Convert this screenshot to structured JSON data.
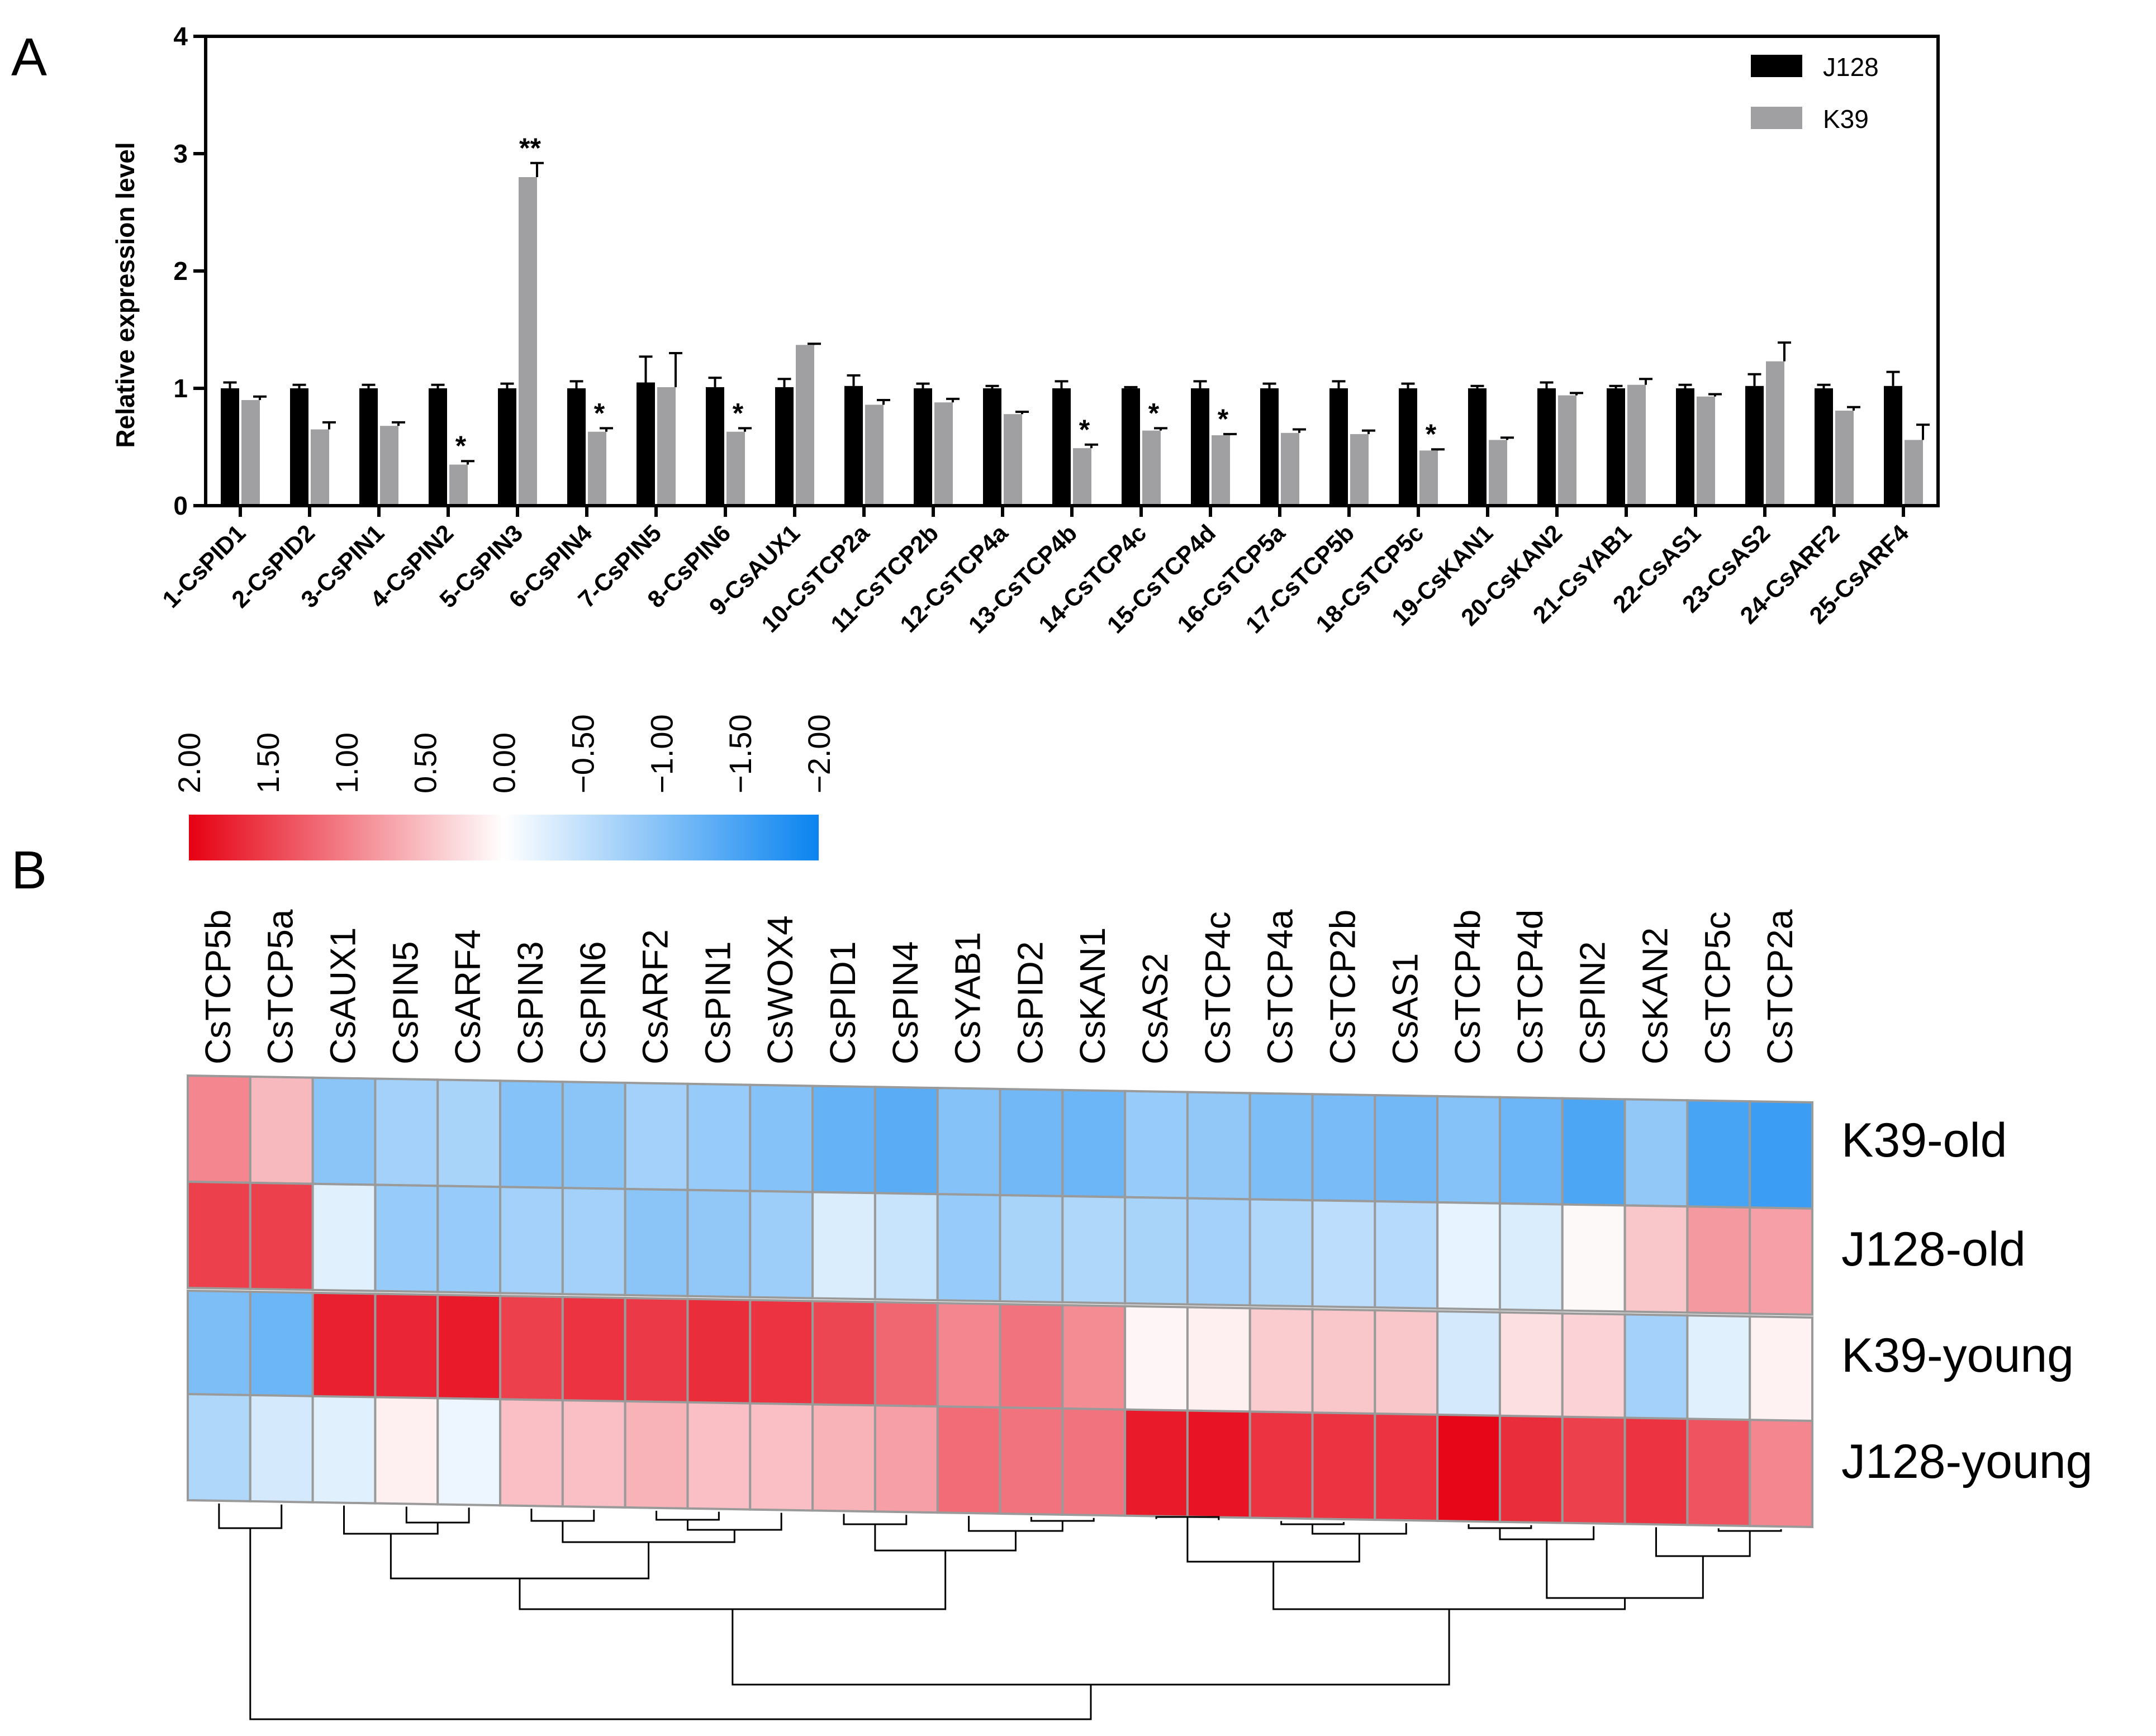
{
  "chart_data": [
    {
      "type": "bar",
      "panel_label": "A",
      "ylabel": "Relative expression level",
      "xlabel": "",
      "ylim": [
        0,
        4
      ],
      "yticks": [
        "0",
        "1",
        "2",
        "3",
        "4"
      ],
      "categories": [
        "1-CsPID1",
        "2-CsPID2",
        "3-CsPIN1",
        "4-CsPIN2",
        "5-CsPIN3",
        "6-CsPIN4",
        "7-CsPIN5",
        "8-CsPIN6",
        "9-CsAUX1",
        "10-CsTCP2a",
        "11-CsTCP2b",
        "12-CsTCP4a",
        "13-CsTCP4b",
        "14-CsTCP4c",
        "15-CsTCP4d",
        "16-CsTCP5a",
        "17-CsTCP5b",
        "18-CsTCP5c",
        "19-CsKAN1",
        "20-CsKAN2",
        "21-CsYAB1",
        "22-CsAS1",
        "23-CsAS2",
        "24-CsARF2",
        "25-CsARF4"
      ],
      "series": [
        {
          "name": "J128",
          "color": "#000000",
          "values": [
            1.0,
            1.0,
            1.0,
            1.0,
            1.0,
            1.0,
            1.05,
            1.01,
            1.01,
            1.02,
            1.0,
            1.0,
            1.0,
            1.0,
            1.0,
            1.0,
            1.0,
            1.0,
            1.0,
            1.0,
            1.0,
            1.0,
            1.02,
            1.0,
            1.02
          ],
          "errors": [
            0.05,
            0.03,
            0.03,
            0.03,
            0.04,
            0.06,
            0.22,
            0.08,
            0.07,
            0.09,
            0.04,
            0.02,
            0.06,
            0.01,
            0.06,
            0.04,
            0.06,
            0.04,
            0.02,
            0.05,
            0.02,
            0.03,
            0.1,
            0.03,
            0.12
          ]
        },
        {
          "name": "K39",
          "color": "#a0a0a2",
          "values": [
            0.9,
            0.65,
            0.68,
            0.35,
            2.8,
            0.63,
            1.01,
            0.63,
            1.37,
            0.86,
            0.88,
            0.78,
            0.49,
            0.64,
            0.6,
            0.62,
            0.61,
            0.47,
            0.56,
            0.94,
            1.03,
            0.93,
            1.23,
            0.81,
            0.56
          ],
          "errors": [
            0.03,
            0.06,
            0.03,
            0.03,
            0.12,
            0.03,
            0.29,
            0.03,
            0.01,
            0.04,
            0.03,
            0.02,
            0.03,
            0.02,
            0.01,
            0.03,
            0.03,
            0.01,
            0.02,
            0.02,
            0.05,
            0.02,
            0.16,
            0.03,
            0.13
          ]
        }
      ],
      "significance": [
        "",
        "",
        "",
        "*",
        "**",
        "*",
        "",
        "*",
        "",
        "",
        "",
        "",
        "*",
        "*",
        "*",
        "",
        "",
        "*",
        "",
        "",
        "",
        "",
        "",
        "",
        ""
      ],
      "legend_position": "top-right"
    },
    {
      "type": "heatmap",
      "panel_label": "B",
      "columns": [
        "CsTCP5b",
        "CsTCP5a",
        "CsAUX1",
        "CsPIN5",
        "CsARF4",
        "CsPIN3",
        "CsPIN6",
        "CsARF2",
        "CsPIN1",
        "CsWOX4",
        "CsPID1",
        "CsPIN4",
        "CsYAB1",
        "CsPID2",
        "CsKAN1",
        "CsAS2",
        "CsTCP4c",
        "CsTCP4a",
        "CsTCP2b",
        "CsAS1",
        "CsTCP4b",
        "CsTCP4d",
        "CsPIN2",
        "CsKAN2",
        "CsTCP5c",
        "CsTCP2a"
      ],
      "rows": [
        "K39-old",
        "J128-old",
        "K39-young",
        "J128-young"
      ],
      "values": [
        [
          0.95,
          0.55,
          -0.95,
          -0.75,
          -0.7,
          -1.0,
          -0.95,
          -0.75,
          -0.85,
          -1.0,
          -1.25,
          -1.35,
          -1.0,
          -1.15,
          -1.2,
          -0.85,
          -0.9,
          -1.05,
          -1.1,
          -1.15,
          -1.0,
          -1.2,
          -1.45,
          -0.9,
          -1.5,
          -1.6
        ],
        [
          1.5,
          1.5,
          -0.25,
          -0.85,
          -0.85,
          -0.75,
          -0.75,
          -0.95,
          -0.9,
          -0.8,
          -0.3,
          -0.45,
          -0.85,
          -0.7,
          -0.65,
          -0.7,
          -0.75,
          -0.65,
          -0.55,
          -0.6,
          -0.2,
          -0.3,
          0.05,
          0.45,
          0.8,
          0.75
        ],
        [
          -1.05,
          -1.2,
          1.75,
          1.7,
          1.8,
          1.5,
          1.6,
          1.55,
          1.65,
          1.6,
          1.45,
          1.2,
          0.95,
          1.1,
          0.9,
          0.08,
          0.12,
          0.4,
          0.45,
          0.45,
          -0.35,
          0.25,
          0.35,
          -0.75,
          -0.25,
          0.1
        ],
        [
          -0.65,
          -0.35,
          -0.25,
          0.12,
          -0.15,
          0.5,
          0.5,
          0.6,
          0.5,
          0.5,
          0.6,
          0.75,
          1.15,
          1.1,
          1.1,
          1.8,
          1.85,
          1.6,
          1.6,
          1.6,
          1.95,
          1.65,
          1.5,
          1.6,
          1.35,
          0.95
        ]
      ],
      "colorscale": {
        "ticks": [
          "2.00",
          "1.50",
          "1.00",
          "0.50",
          "0.00",
          "−0.50",
          "−1.00",
          "−1.50",
          "−2.00"
        ],
        "max_color": "#e60012",
        "mid_color": "#ffffff",
        "min_color": "#0a84f0"
      }
    }
  ]
}
